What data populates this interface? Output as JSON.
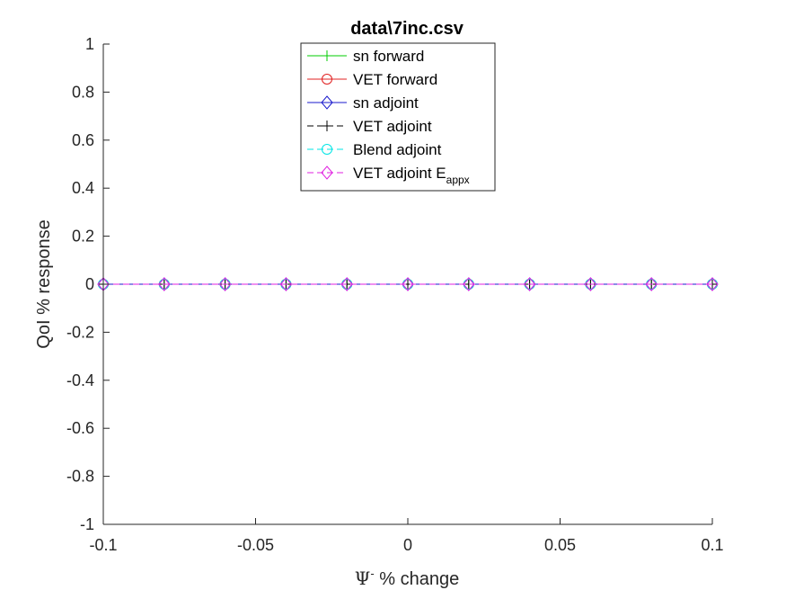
{
  "chart_data": {
    "type": "line",
    "title": "data\\7inc.csv",
    "xlabel_symbol": "Ψ",
    "xlabel_sup": "-",
    "xlabel_rest": " % change",
    "ylabel": "QoI % response",
    "xlim": [
      -0.1,
      0.1
    ],
    "ylim": [
      -1,
      1
    ],
    "x_ticks": [
      -0.1,
      -0.05,
      0,
      0.05,
      0.1
    ],
    "x_tick_labels": [
      "-0.1",
      "-0.05",
      "0",
      "0.05",
      "0.1"
    ],
    "y_ticks": [
      -1,
      -0.8,
      -0.6,
      -0.4,
      -0.2,
      0,
      0.2,
      0.4,
      0.6,
      0.8,
      1
    ],
    "y_tick_labels": [
      "-1",
      "-0.8",
      "-0.6",
      "-0.4",
      "-0.2",
      "0",
      "0.2",
      "0.4",
      "0.6",
      "0.8",
      "1"
    ],
    "grid": false,
    "legend_position": "top-center",
    "x": [
      -0.1,
      -0.08,
      -0.06,
      -0.04,
      -0.02,
      0,
      0.02,
      0.04,
      0.06,
      0.08,
      0.1
    ],
    "series": [
      {
        "name": "sn forward",
        "color": "#00cc00",
        "marker": "plus",
        "dash": "solid",
        "values": [
          0,
          0,
          0,
          0,
          0,
          0,
          0,
          0,
          0,
          0,
          0
        ]
      },
      {
        "name": "VET forward",
        "color": "#e02020",
        "marker": "circle",
        "dash": "solid",
        "values": [
          0,
          0,
          0,
          0,
          0,
          0,
          0,
          0,
          0,
          0,
          0
        ]
      },
      {
        "name": "sn adjoint",
        "color": "#1a1acc",
        "marker": "diamond",
        "dash": "solid",
        "values": [
          0,
          0,
          0,
          0,
          0,
          0,
          0,
          0,
          0,
          0,
          0
        ]
      },
      {
        "name": "VET adjoint",
        "color": "#000000",
        "marker": "plus",
        "dash": "dashed",
        "values": [
          0,
          0,
          0,
          0,
          0,
          0,
          0,
          0,
          0,
          0,
          0
        ]
      },
      {
        "name": "Blend adjoint",
        "color": "#00e5e5",
        "marker": "circle",
        "dash": "dashed",
        "values": [
          0,
          0,
          0,
          0,
          0,
          0,
          0,
          0,
          0,
          0,
          0
        ]
      },
      {
        "name": "VET adjoint E",
        "name_sub": "appx",
        "color": "#e020e0",
        "marker": "diamond",
        "dash": "dashed",
        "values": [
          0,
          0,
          0,
          0,
          0,
          0,
          0,
          0,
          0,
          0,
          0
        ]
      }
    ]
  }
}
